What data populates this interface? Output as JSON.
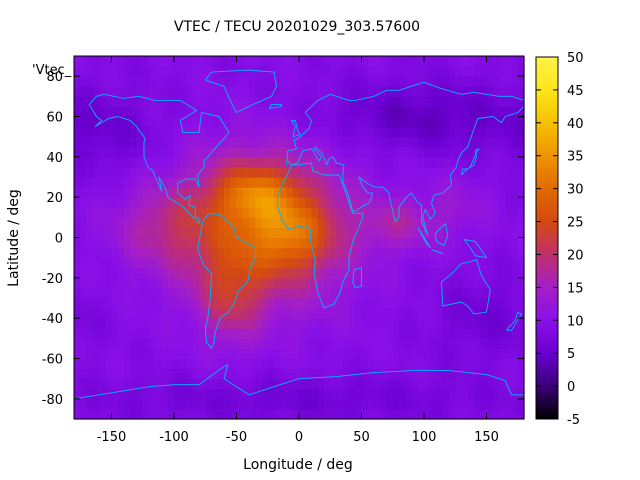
{
  "chart_data": {
    "type": "heatmap",
    "title": "VTEC / TECU 20201029_303.57600",
    "xlabel": "Longitude / deg",
    "ylabel": "Latitude / deg",
    "series_key": "'Vtec_",
    "xlim": [
      -180,
      180
    ],
    "ylim": [
      -90,
      90
    ],
    "xticks": [
      -150,
      -100,
      -50,
      0,
      50,
      100,
      150
    ],
    "yticks": [
      -80,
      -60,
      -40,
      -20,
      0,
      20,
      40,
      60,
      80
    ],
    "colorbar": {
      "range": [
        -5,
        50
      ],
      "ticks": [
        -5,
        0,
        5,
        10,
        15,
        20,
        25,
        30,
        35,
        40,
        45,
        50
      ],
      "colors": [
        "#000000",
        "#3a0078",
        "#6a00d0",
        "#8a10e8",
        "#a41fc6",
        "#c0306a",
        "#d44a10",
        "#e26a00",
        "#ef9400",
        "#f7c000",
        "#fce61a",
        "#fff24a"
      ]
    },
    "grid": false,
    "background_level": 9,
    "blobs": [
      {
        "lon": -30,
        "lat": 5,
        "slon": 48,
        "slat": 26,
        "amp": 17
      },
      {
        "lon": -35,
        "lat": 22,
        "slon": 22,
        "slat": 10,
        "amp": 11
      },
      {
        "lon": -5,
        "lat": 2,
        "slon": 22,
        "slat": 12,
        "amp": 9
      },
      {
        "lon": -55,
        "lat": -30,
        "slon": 18,
        "slat": 16,
        "amp": 8
      },
      {
        "lon": -110,
        "lat": 5,
        "slon": 28,
        "slat": 14,
        "amp": 6
      },
      {
        "lon": 80,
        "lat": 7,
        "slon": 22,
        "slat": 9,
        "amp": 6
      },
      {
        "lon": 125,
        "lat": 15,
        "slon": 20,
        "slat": 12,
        "amp": 3
      },
      {
        "lon": 100,
        "lat": 60,
        "slon": 60,
        "slat": 12,
        "amp": -5
      },
      {
        "lon": -150,
        "lat": 50,
        "slon": 30,
        "slat": 14,
        "amp": -3
      },
      {
        "lon": 150,
        "lat": -40,
        "slon": 30,
        "slat": 14,
        "amp": -3
      },
      {
        "lon": 0,
        "lat": -80,
        "slon": 120,
        "slat": 8,
        "amp": -3
      }
    ],
    "coastlines": [
      [
        [
          -168,
          66
        ],
        [
          -162,
          70
        ],
        [
          -156,
          71
        ],
        [
          -140,
          69
        ],
        [
          -128,
          70
        ],
        [
          -115,
          68
        ],
        [
          -95,
          68
        ],
        [
          -82,
          63
        ],
        [
          -95,
          58
        ],
        [
          -93,
          52
        ],
        [
          -80,
          52
        ],
        [
          -78,
          62
        ],
        [
          -64,
          60
        ],
        [
          -56,
          52
        ],
        [
          -66,
          45
        ],
        [
          -70,
          42
        ],
        [
          -76,
          38
        ],
        [
          -76,
          35
        ],
        [
          -81,
          31
        ],
        [
          -80,
          25
        ],
        [
          -83,
          29
        ],
        [
          -90,
          29
        ],
        [
          -97,
          27
        ],
        [
          -97,
          22
        ],
        [
          -91,
          19
        ],
        [
          -87,
          21
        ],
        [
          -88,
          16
        ],
        [
          -83,
          15
        ],
        [
          -83,
          10
        ],
        [
          -79,
          9
        ],
        [
          -80,
          7
        ],
        [
          -85,
          10
        ],
        [
          -92,
          15
        ],
        [
          -105,
          20
        ],
        [
          -106,
          23
        ],
        [
          -112,
          30
        ],
        [
          -110,
          23
        ],
        [
          -115,
          30
        ],
        [
          -117,
          33
        ],
        [
          -121,
          35
        ],
        [
          -124,
          40
        ],
        [
          -124,
          47
        ],
        [
          -123,
          49
        ],
        [
          -130,
          55
        ],
        [
          -135,
          58
        ],
        [
          -145,
          60
        ],
        [
          -152,
          59
        ],
        [
          -158,
          57
        ],
        [
          -163,
          55
        ],
        [
          -158,
          58
        ],
        [
          -162,
          60
        ],
        [
          -165,
          63
        ],
        [
          -168,
          66
        ]
      ],
      [
        [
          -77,
          8
        ],
        [
          -72,
          12
        ],
        [
          -62,
          11
        ],
        [
          -52,
          5
        ],
        [
          -50,
          0
        ],
        [
          -44,
          -2
        ],
        [
          -35,
          -5
        ],
        [
          -35,
          -10
        ],
        [
          -39,
          -15
        ],
        [
          -41,
          -22
        ],
        [
          -48,
          -26
        ],
        [
          -53,
          -34
        ],
        [
          -58,
          -38
        ],
        [
          -62,
          -39
        ],
        [
          -65,
          -43
        ],
        [
          -67,
          -47
        ],
        [
          -68,
          -52
        ],
        [
          -70,
          -55
        ],
        [
          -74,
          -52
        ],
        [
          -75,
          -45
        ],
        [
          -73,
          -40
        ],
        [
          -71,
          -30
        ],
        [
          -70,
          -18
        ],
        [
          -76,
          -14
        ],
        [
          -81,
          -6
        ],
        [
          -80,
          -2
        ],
        [
          -77,
          8
        ]
      ],
      [
        [
          -17,
          15
        ],
        [
          -17,
          21
        ],
        [
          -13,
          27
        ],
        [
          -10,
          30
        ],
        [
          -6,
          36
        ],
        [
          0,
          36
        ],
        [
          10,
          37
        ],
        [
          11,
          33
        ],
        [
          20,
          31
        ],
        [
          32,
          31
        ],
        [
          34,
          28
        ],
        [
          38,
          21
        ],
        [
          43,
          12
        ],
        [
          51,
          12
        ],
        [
          51,
          10
        ],
        [
          43,
          -2
        ],
        [
          40,
          -10
        ],
        [
          40,
          -16
        ],
        [
          35,
          -22
        ],
        [
          33,
          -27
        ],
        [
          28,
          -33
        ],
        [
          20,
          -35
        ],
        [
          18,
          -32
        ],
        [
          15,
          -27
        ],
        [
          12,
          -18
        ],
        [
          13,
          -12
        ],
        [
          9,
          -1
        ],
        [
          9,
          4
        ],
        [
          5,
          6
        ],
        [
          -4,
          5
        ],
        [
          -8,
          4
        ],
        [
          -13,
          8
        ],
        [
          -17,
          15
        ]
      ],
      [
        [
          44,
          -16
        ],
        [
          50,
          -15
        ],
        [
          50,
          -24
        ],
        [
          45,
          -25
        ],
        [
          43,
          -22
        ],
        [
          44,
          -16
        ]
      ],
      [
        [
          -10,
          36
        ],
        [
          -9,
          43
        ],
        [
          -2,
          44
        ],
        [
          -4,
          48
        ],
        [
          1,
          50
        ],
        [
          8,
          54
        ],
        [
          10,
          58
        ],
        [
          5,
          62
        ],
        [
          15,
          68
        ],
        [
          25,
          71
        ],
        [
          40,
          68
        ],
        [
          45,
          68
        ],
        [
          60,
          70
        ],
        [
          70,
          73
        ],
        [
          80,
          73
        ],
        [
          100,
          77
        ],
        [
          113,
          74
        ],
        [
          130,
          71
        ],
        [
          140,
          72
        ],
        [
          160,
          70
        ],
        [
          170,
          70
        ],
        [
          180,
          68
        ]
      ],
      [
        [
          180,
          65
        ],
        [
          175,
          62
        ],
        [
          165,
          60
        ],
        [
          162,
          57
        ],
        [
          155,
          60
        ],
        [
          143,
          59
        ],
        [
          140,
          54
        ],
        [
          135,
          45
        ],
        [
          130,
          42
        ],
        [
          127,
          38
        ],
        [
          126,
          35
        ],
        [
          121,
          31
        ],
        [
          122,
          26
        ],
        [
          115,
          22
        ],
        [
          108,
          21
        ],
        [
          106,
          17
        ],
        [
          109,
          12
        ],
        [
          105,
          9
        ],
        [
          101,
          14
        ],
        [
          99,
          10
        ],
        [
          103,
          1
        ],
        [
          98,
          8
        ],
        [
          98,
          16
        ],
        [
          94,
          18
        ],
        [
          90,
          22
        ],
        [
          86,
          20
        ],
        [
          80,
          15
        ],
        [
          80,
          10
        ],
        [
          77,
          8
        ],
        [
          73,
          18
        ],
        [
          72,
          22
        ],
        [
          67,
          25
        ],
        [
          61,
          25
        ],
        [
          57,
          26
        ],
        [
          52,
          28
        ],
        [
          48,
          30
        ],
        [
          51,
          25
        ],
        [
          55,
          22
        ],
        [
          59,
          22
        ],
        [
          56,
          17
        ],
        [
          52,
          16
        ],
        [
          45,
          13
        ],
        [
          43,
          13
        ],
        [
          40,
          20
        ],
        [
          35,
          28
        ],
        [
          35,
          32
        ],
        [
          36,
          36
        ],
        [
          30,
          37
        ],
        [
          27,
          40
        ],
        [
          24,
          39
        ],
        [
          22,
          36
        ],
        [
          20,
          40
        ],
        [
          18,
          42
        ],
        [
          13,
          45
        ],
        [
          12,
          44
        ],
        [
          18,
          40
        ],
        [
          16,
          38
        ],
        [
          10,
          44
        ],
        [
          3,
          43
        ],
        [
          -1,
          37
        ],
        [
          -6,
          36
        ],
        [
          -9,
          38
        ]
      ],
      [
        [
          114,
          -22
        ],
        [
          122,
          -18
        ],
        [
          130,
          -13
        ],
        [
          137,
          -12
        ],
        [
          142,
          -11
        ],
        [
          146,
          -19
        ],
        [
          153,
          -26
        ],
        [
          150,
          -37
        ],
        [
          140,
          -38
        ],
        [
          135,
          -34
        ],
        [
          130,
          -32
        ],
        [
          115,
          -34
        ],
        [
          114,
          -22
        ]
      ],
      [
        [
          -180,
          -80
        ],
        [
          -150,
          -77
        ],
        [
          -120,
          -74
        ],
        [
          -100,
          -73
        ],
        [
          -80,
          -73
        ],
        [
          -60,
          -64
        ],
        [
          -57,
          -63
        ],
        [
          -60,
          -70
        ],
        [
          -40,
          -78
        ],
        [
          -20,
          -74
        ],
        [
          0,
          -70
        ],
        [
          30,
          -69
        ],
        [
          60,
          -67
        ],
        [
          90,
          -66
        ],
        [
          120,
          -66
        ],
        [
          150,
          -68
        ],
        [
          165,
          -71
        ],
        [
          170,
          -78
        ],
        [
          180,
          -78
        ]
      ],
      [
        [
          -75,
          78
        ],
        [
          -70,
          82
        ],
        [
          -40,
          83
        ],
        [
          -20,
          82
        ],
        [
          -18,
          75
        ],
        [
          -22,
          70
        ],
        [
          -40,
          65
        ],
        [
          -50,
          62
        ],
        [
          -55,
          68
        ],
        [
          -60,
          75
        ],
        [
          -75,
          78
        ]
      ],
      [
        [
          -5,
          50
        ],
        [
          -3,
          55
        ],
        [
          -6,
          58
        ],
        [
          -3,
          58
        ],
        [
          -1,
          53
        ],
        [
          1,
          51
        ],
        [
          -5,
          50
        ]
      ],
      [
        [
          130,
          31
        ],
        [
          131,
          34
        ],
        [
          135,
          34
        ],
        [
          140,
          36
        ],
        [
          142,
          40
        ],
        [
          141,
          43
        ],
        [
          144,
          44
        ],
        [
          141,
          41
        ],
        [
          139,
          38
        ],
        [
          137,
          35
        ],
        [
          133,
          33
        ],
        [
          130,
          31
        ]
      ],
      [
        [
          95,
          5
        ],
        [
          100,
          0
        ],
        [
          105,
          -5
        ],
        [
          102,
          -3
        ],
        [
          95,
          5
        ]
      ],
      [
        [
          106,
          -6
        ],
        [
          115,
          -8
        ],
        [
          110,
          -7
        ],
        [
          106,
          -6
        ]
      ],
      [
        [
          109,
          2
        ],
        [
          117,
          7
        ],
        [
          119,
          1
        ],
        [
          116,
          -4
        ],
        [
          110,
          -2
        ],
        [
          109,
          2
        ]
      ],
      [
        [
          132,
          -1
        ],
        [
          141,
          -2
        ],
        [
          150,
          -10
        ],
        [
          141,
          -9
        ],
        [
          137,
          -5
        ],
        [
          132,
          -1
        ]
      ],
      [
        [
          166,
          -46
        ],
        [
          173,
          -41
        ],
        [
          175,
          -37
        ],
        [
          178,
          -38
        ],
        [
          174,
          -42
        ],
        [
          170,
          -46
        ],
        [
          166,
          -46
        ]
      ],
      [
        [
          -24,
          64
        ],
        [
          -14,
          65
        ],
        [
          -14,
          66
        ],
        [
          -22,
          66
        ],
        [
          -24,
          64
        ]
      ]
    ]
  }
}
